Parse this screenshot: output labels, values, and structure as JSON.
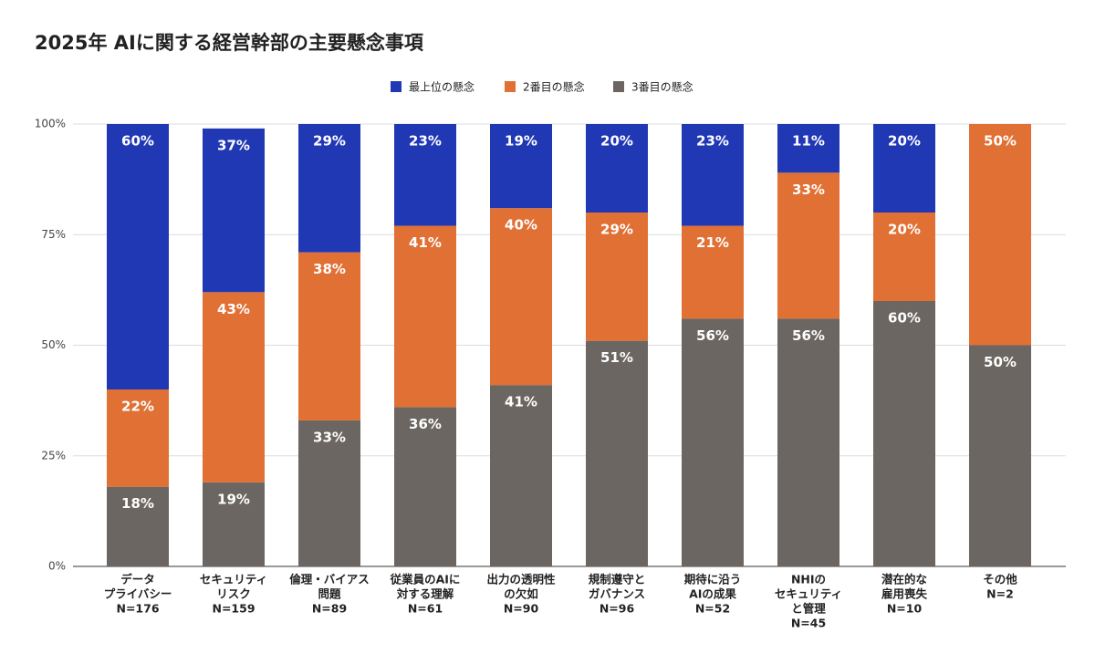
{
  "chart_data": {
    "type": "stacked_bar",
    "title": "2025年 AIに関する経営幹部の主要懸念事項",
    "categories": [
      [
        "データ",
        "プライバシー",
        "N=176"
      ],
      [
        "セキュリティ",
        "リスク",
        "N=159"
      ],
      [
        "倫理・バイアス",
        "問題",
        "N=89"
      ],
      [
        "従業員のAIに",
        "対する理解",
        "N=61"
      ],
      [
        "出力の透明性",
        "の欠如",
        "N=90"
      ],
      [
        "規制遵守と",
        "ガバナンス",
        "N=96"
      ],
      [
        "期待に沿う",
        "AIの成果",
        "N=52"
      ],
      [
        "NHIの",
        "セキュリティ",
        "と管理",
        "N=45"
      ],
      [
        "潜在的な",
        "雇用喪失",
        "N=10"
      ],
      [
        "その他",
        "N=2"
      ]
    ],
    "series": [
      {
        "name": "最上位の懸念",
        "color": "#2138b5",
        "values": [
          60,
          37,
          29,
          23,
          19,
          20,
          23,
          11,
          20,
          null
        ],
        "value_labels": [
          "60%",
          "37%",
          "29%",
          "23%",
          "19%",
          "20%",
          "23%",
          "11%",
          "20%",
          null
        ]
      },
      {
        "name": "2番目の懸念",
        "color": "#e07034",
        "values": [
          22,
          43,
          38,
          41,
          40,
          29,
          21,
          33,
          20,
          50
        ],
        "value_labels": [
          "22%",
          "43%",
          "38%",
          "41%",
          "40%",
          "29%",
          "21%",
          "33%",
          "20%",
          "50%"
        ]
      },
      {
        "name": "3番目の懸念",
        "color": "#6b6661",
        "values": [
          18,
          19,
          33,
          36,
          41,
          51,
          56,
          56,
          60,
          50
        ],
        "value_labels": [
          "18%",
          "19%",
          "33%",
          "36%",
          "41%",
          "51%",
          "56%",
          "56%",
          "60%",
          "50%"
        ]
      }
    ],
    "ylim": [
      0,
      100
    ],
    "yticks": [
      {
        "value": 0,
        "label": "0%"
      },
      {
        "value": 25,
        "label": "25%"
      },
      {
        "value": 50,
        "label": "50%"
      },
      {
        "value": 75,
        "label": "75%"
      },
      {
        "value": 100,
        "label": "100%"
      }
    ],
    "grid": true,
    "legend": "top"
  }
}
